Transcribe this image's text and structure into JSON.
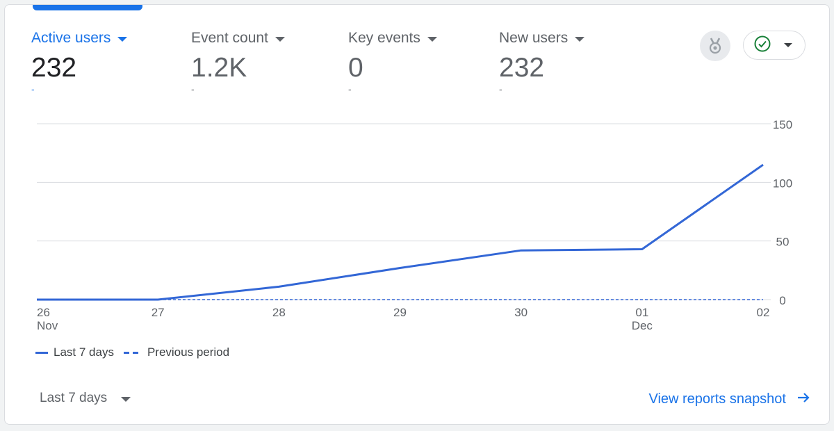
{
  "metrics": [
    {
      "label": "Active users",
      "value": "232",
      "change": "-",
      "active": true
    },
    {
      "label": "Event count",
      "value": "1.2K",
      "change": "-",
      "active": false
    },
    {
      "label": "Key events",
      "value": "0",
      "change": "-",
      "active": false
    },
    {
      "label": "New users",
      "value": "232",
      "change": "-",
      "active": false
    }
  ],
  "header_icons": {
    "medal": "medal-icon",
    "status": "check-circle-icon",
    "status_dropdown": "chevron-down-icon"
  },
  "legend": {
    "current": "Last 7 days",
    "previous": "Previous period"
  },
  "footer": {
    "date_range": "Last 7 days",
    "link_label": "View reports snapshot",
    "link_icon": "arrow-right-icon"
  },
  "colors": {
    "accent": "#1a73e8",
    "series": "#3367d6",
    "check": "#188038"
  },
  "chart_data": {
    "type": "line",
    "categories": [
      "26\nNov",
      "27",
      "28",
      "29",
      "30",
      "01\nDec",
      "02"
    ],
    "series": [
      {
        "name": "Last 7 days",
        "style": "solid",
        "values": [
          0,
          0,
          11,
          27,
          42,
          43,
          115
        ]
      },
      {
        "name": "Previous period",
        "style": "dashed",
        "values": [
          0,
          0,
          0,
          0,
          0,
          0,
          0
        ]
      }
    ],
    "yaxis": {
      "position": "right",
      "min": 0,
      "max": 150,
      "ticks": [
        0,
        50,
        100,
        150
      ]
    },
    "title": "",
    "xlabel": "",
    "ylabel": "",
    "grid": true
  }
}
